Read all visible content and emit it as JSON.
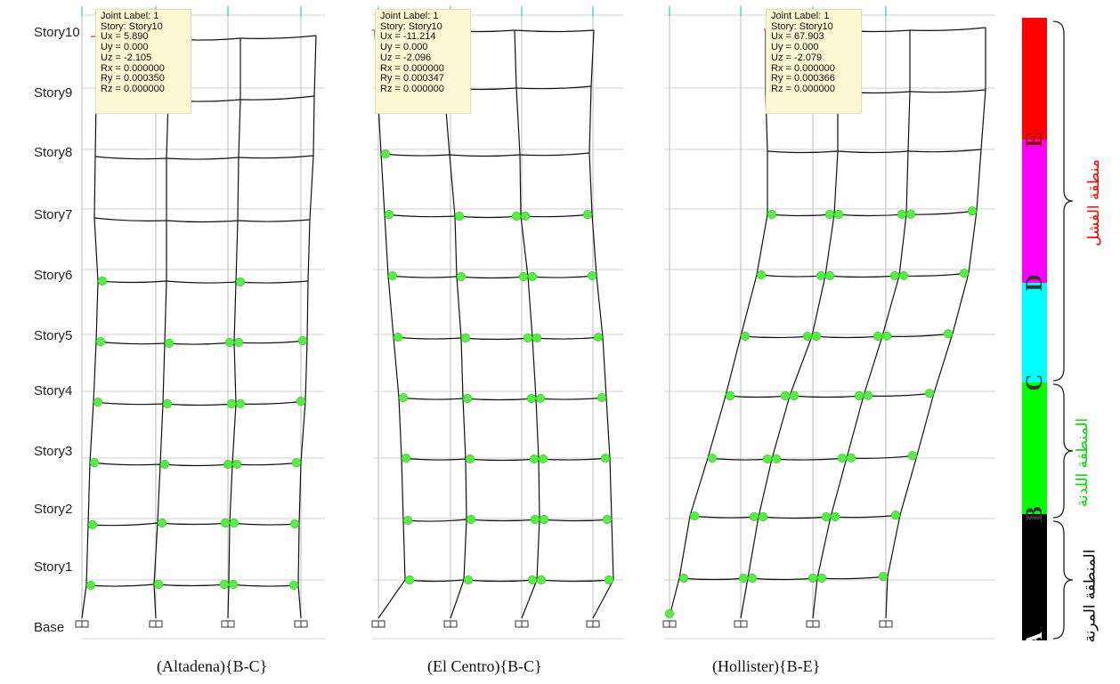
{
  "story_labels": [
    "Story10",
    "Story9",
    "Story8",
    "Story7",
    "Story6",
    "Story5",
    "Story4",
    "Story3",
    "Story2",
    "Story1",
    "Base"
  ],
  "frames": [
    {
      "caption": "(Altadena){B-C}",
      "tooltip": [
        "Joint Label: 1",
        "Story: Story10",
        "Ux = 5.890",
        "Uy = 0.000",
        "Uz = -2.105",
        "Rx = 0.000000",
        "Ry = 0.000350",
        "Rz = 0.000000"
      ]
    },
    {
      "caption": "(El Centro){B-C}",
      "tooltip": [
        "Joint Label: 1",
        "Story: Story10",
        "Ux = -11.214",
        "Uy = 0.000",
        "Uz = -2.096",
        "Rx = 0.000000",
        "Ry = 0.000347",
        "Rz = 0.000000"
      ]
    },
    {
      "caption": "(Hollister){B-E}",
      "tooltip": [
        "Joint Label: 1",
        "Story: Story10",
        "Ux = 67.903",
        "Uy = 0.000",
        "Uz = -2.079",
        "Rx = 0.000000",
        "Ry = 0.000366",
        "Rz = 0.000000"
      ]
    }
  ],
  "legend": {
    "segments": [
      {
        "from": "E",
        "to": "top",
        "color": "#ff0000"
      },
      {
        "from": "D",
        "to": "E",
        "color": "#ff00ff"
      },
      {
        "from": "C",
        "to": "D",
        "color": "#00ffff"
      },
      {
        "from": "B",
        "to": "C",
        "color": "#00ff00"
      },
      {
        "from": "A",
        "to": "B",
        "color": "#000000"
      }
    ],
    "letters": [
      "A",
      "B",
      "C",
      "D",
      "E"
    ],
    "zones": {
      "failure": {
        "label": "منطقة الفشل",
        "color": "#ff0000"
      },
      "plastic": {
        "label": "المنطقة اللدنة",
        "color": "#00dd00"
      },
      "elastic": {
        "label": "المنطقة المرنة",
        "color": "#000000"
      }
    }
  },
  "colors": {
    "hinge_bc": "#55ee44",
    "hinge_de": "#ee44ee",
    "frame_line": "#111111",
    "grid_line": "#bbbbbb"
  }
}
